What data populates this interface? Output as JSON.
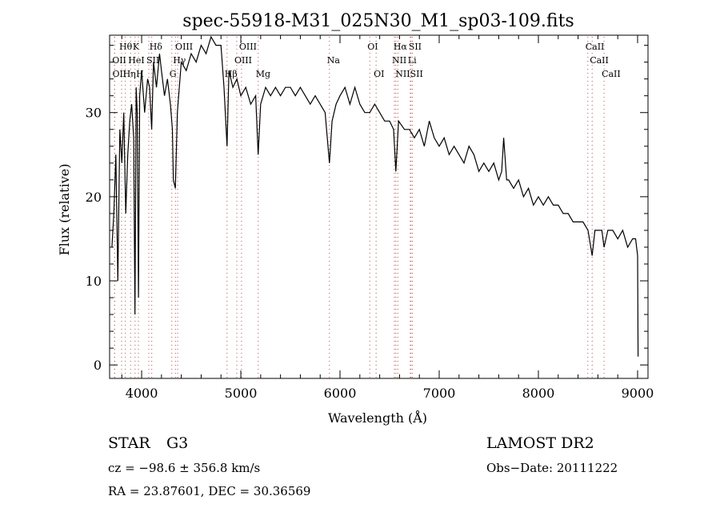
{
  "chart_data": {
    "type": "line",
    "title": "spec-55918-M31_025N30_M1_sp03-109.fits",
    "xlabel": "Wavelength (Å)",
    "ylabel": "Flux (relative)",
    "xlim": [
      3677,
      9105
    ],
    "ylim": [
      -1.6,
      39.2
    ],
    "xticks": [
      4000,
      5000,
      6000,
      7000,
      8000,
      9000
    ],
    "yticks": [
      0,
      10,
      20,
      30
    ],
    "grid": false,
    "series": [
      {
        "name": "spectrum",
        "x": [
          3700,
          3720,
          3740,
          3760,
          3780,
          3800,
          3820,
          3840,
          3860,
          3880,
          3900,
          3920,
          3933,
          3945,
          3955,
          3968,
          3980,
          4000,
          4030,
          4060,
          4080,
          4101,
          4120,
          4150,
          4180,
          4200,
          4230,
          4260,
          4290,
          4310,
          4320,
          4340,
          4360,
          4400,
          4450,
          4500,
          4550,
          4600,
          4650,
          4700,
          4750,
          4800,
          4830,
          4861,
          4880,
          4920,
          4960,
          5000,
          5050,
          5100,
          5150,
          5175,
          5200,
          5250,
          5300,
          5350,
          5400,
          5450,
          5500,
          5550,
          5600,
          5650,
          5700,
          5750,
          5800,
          5850,
          5893,
          5920,
          5960,
          6000,
          6050,
          6100,
          6150,
          6200,
          6250,
          6300,
          6350,
          6400,
          6450,
          6500,
          6540,
          6563,
          6590,
          6650,
          6700,
          6750,
          6800,
          6850,
          6900,
          6950,
          7000,
          7050,
          7100,
          7150,
          7200,
          7250,
          7300,
          7350,
          7400,
          7450,
          7500,
          7550,
          7600,
          7630,
          7650,
          7680,
          7700,
          7750,
          7800,
          7850,
          7900,
          7950,
          8000,
          8050,
          8100,
          8150,
          8200,
          8250,
          8300,
          8350,
          8400,
          8450,
          8500,
          8542,
          8570,
          8600,
          8640,
          8662,
          8700,
          8750,
          8800,
          8850,
          8900,
          8950,
          8980,
          9000,
          9005
        ],
        "y": [
          14,
          18,
          25,
          10,
          28,
          24,
          30,
          18,
          25,
          29,
          31,
          27,
          6,
          33,
          30,
          8,
          32,
          35,
          30,
          34,
          33,
          28,
          36,
          33,
          37,
          35,
          32,
          34,
          31,
          28,
          22,
          21,
          30,
          36,
          35,
          37,
          36,
          38,
          37,
          39,
          38,
          38,
          33,
          26,
          35,
          33,
          34,
          32,
          33,
          31,
          32,
          25,
          31,
          33,
          32,
          33,
          32,
          33,
          33,
          32,
          33,
          32,
          31,
          32,
          31,
          30,
          24,
          29,
          31,
          32,
          33,
          31,
          33,
          31,
          30,
          30,
          31,
          30,
          29,
          29,
          28,
          23,
          29,
          28,
          28,
          27,
          28,
          26,
          29,
          27,
          26,
          27,
          25,
          26,
          25,
          24,
          26,
          25,
          23,
          24,
          23,
          24,
          22,
          23,
          27,
          22,
          22,
          21,
          22,
          20,
          21,
          19,
          20,
          19,
          20,
          19,
          19,
          18,
          18,
          17,
          17,
          17,
          16,
          13,
          16,
          16,
          16,
          14,
          16,
          16,
          15,
          16,
          14,
          15,
          15,
          13,
          1
        ]
      }
    ],
    "line_markers": [
      {
        "label": "Hθ",
        "wavelength": 3798,
        "row": 0
      },
      {
        "label": "K",
        "wavelength": 3934,
        "row": 0
      },
      {
        "label": "Hδ",
        "wavelength": 4102,
        "row": 0
      },
      {
        "label": "OIII",
        "wavelength": 4363,
        "row": 0
      },
      {
        "label": "OIII",
        "wavelength": 5007,
        "row": 0
      },
      {
        "label": "OI",
        "wavelength": 6300,
        "row": 0
      },
      {
        "label": "Hα",
        "wavelength": 6563,
        "row": 0
      },
      {
        "label": "SII",
        "wavelength": 6716,
        "row": 0
      },
      {
        "label": "CaII",
        "wavelength": 8498,
        "row": 0
      },
      {
        "label": "OII",
        "wavelength": 3727,
        "row": 1
      },
      {
        "label": "HeI",
        "wavelength": 3889,
        "row": 1
      },
      {
        "label": "SII",
        "wavelength": 4072,
        "row": 1
      },
      {
        "label": "Hγ",
        "wavelength": 4340,
        "row": 1
      },
      {
        "label": "OIII",
        "wavelength": 4959,
        "row": 1
      },
      {
        "label": "Na",
        "wavelength": 5893,
        "row": 1
      },
      {
        "label": "NII",
        "wavelength": 6548,
        "row": 1
      },
      {
        "label": "Li",
        "wavelength": 6708,
        "row": 1
      },
      {
        "label": "CaII",
        "wavelength": 8542,
        "row": 1
      },
      {
        "label": "OII",
        "wavelength": 3729,
        "row": 2
      },
      {
        "label": "Hη",
        "wavelength": 3835,
        "row": 2
      },
      {
        "label": "H",
        "wavelength": 3968,
        "row": 2
      },
      {
        "label": "G",
        "wavelength": 4304,
        "row": 2
      },
      {
        "label": "Hβ",
        "wavelength": 4861,
        "row": 2
      },
      {
        "label": "Mg",
        "wavelength": 5175,
        "row": 2
      },
      {
        "label": "OI",
        "wavelength": 6364,
        "row": 2
      },
      {
        "label": "NII",
        "wavelength": 6583,
        "row": 2
      },
      {
        "label": "SII",
        "wavelength": 6731,
        "row": 2
      },
      {
        "label": "CaII",
        "wavelength": 8662,
        "row": 2
      }
    ],
    "colors": {
      "spectrum": "#000000",
      "marker": "#b05050"
    }
  },
  "info": {
    "object_class": "STAR",
    "subclass": "G3",
    "survey": "LAMOST DR2",
    "cz": "cz = −98.6 ± 356.8 km/s",
    "obs_date": "Obs−Date: 20111222",
    "coords": "RA =  23.87601, DEC =  30.36569"
  }
}
